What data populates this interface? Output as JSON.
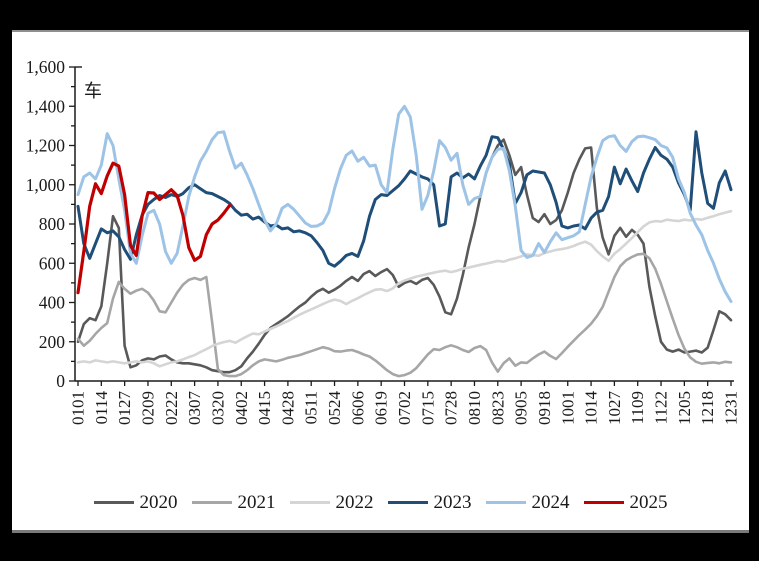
{
  "page": {
    "background": "#000000",
    "panel_background": "#ffffff"
  },
  "chart_data": {
    "type": "line",
    "title": "",
    "unit_label": "车",
    "grid": false,
    "legend_position": "bottom",
    "y_axis": {
      "min": 0,
      "max": 1600,
      "major_step": 200,
      "minor_step": 100,
      "tick_labels": [
        "0",
        "200",
        "400",
        "600",
        "800",
        "1,000",
        "1,200",
        "1,400",
        "1,600"
      ]
    },
    "x_axis": {
      "tick_labels": [
        "0101",
        "0114",
        "0127",
        "0209",
        "0222",
        "0307",
        "0320",
        "0402",
        "0415",
        "0428",
        "0511",
        "0524",
        "0606",
        "0619",
        "0702",
        "0715",
        "0728",
        "0810",
        "0823",
        "0905",
        "0918",
        "1001",
        "1014",
        "1027",
        "1109",
        "1122",
        "1205",
        "1218",
        "1231"
      ],
      "days_per_tick": 13,
      "total_days": 364
    },
    "sample_interval_days": 3.25,
    "axis_color": "#1a1a1a",
    "series": [
      {
        "name": "2020",
        "color": "#595959",
        "width": 2.6,
        "values": [
          200,
          290,
          320,
          310,
          380,
          600,
          840,
          780,
          180,
          70,
          80,
          105,
          115,
          110,
          125,
          130,
          110,
          95,
          90,
          90,
          85,
          80,
          70,
          55,
          50,
          45,
          45,
          55,
          75,
          115,
          150,
          190,
          235,
          270,
          290,
          310,
          330,
          355,
          380,
          400,
          430,
          455,
          470,
          450,
          465,
          485,
          510,
          530,
          510,
          545,
          560,
          535,
          555,
          570,
          540,
          480,
          500,
          510,
          495,
          515,
          525,
          490,
          430,
          350,
          340,
          420,
          540,
          680,
          800,
          940,
          1060,
          1140,
          1200,
          1230,
          1150,
          1050,
          1090,
          950,
          830,
          810,
          850,
          800,
          820,
          870,
          960,
          1060,
          1130,
          1185,
          1190,
          880,
          730,
          645,
          740,
          780,
          735,
          770,
          745,
          700,
          480,
          330,
          200,
          160,
          150,
          160,
          145,
          150,
          155,
          145,
          170,
          260,
          355,
          340,
          310
        ]
      },
      {
        "name": "2021",
        "color": "#a6a6a6",
        "width": 2.6,
        "values": [
          215,
          180,
          205,
          240,
          270,
          295,
          420,
          505,
          470,
          445,
          460,
          470,
          450,
          410,
          355,
          350,
          400,
          450,
          490,
          515,
          525,
          515,
          530,
          300,
          60,
          30,
          25,
          25,
          35,
          55,
          80,
          100,
          110,
          105,
          100,
          108,
          118,
          125,
          132,
          142,
          152,
          162,
          172,
          165,
          152,
          150,
          155,
          158,
          148,
          135,
          125,
          105,
          80,
          55,
          35,
          25,
          30,
          42,
          65,
          100,
          135,
          162,
          158,
          172,
          182,
          172,
          158,
          148,
          168,
          178,
          158,
          95,
          48,
          90,
          115,
          78,
          95,
          92,
          115,
          135,
          150,
          128,
          112,
          142,
          175,
          205,
          235,
          262,
          292,
          330,
          378,
          455,
          530,
          585,
          615,
          632,
          645,
          648,
          625,
          572,
          495,
          405,
          318,
          235,
          165,
          120,
          98,
          88,
          92,
          95,
          90,
          98,
          95
        ]
      },
      {
        "name": "2022",
        "color": "#d5d5d5",
        "width": 2.6,
        "values": [
          95,
          100,
          95,
          105,
          100,
          95,
          100,
          95,
          90,
          95,
          100,
          95,
          100,
          90,
          75,
          85,
          95,
          100,
          110,
          122,
          132,
          148,
          162,
          178,
          190,
          198,
          205,
          195,
          212,
          228,
          242,
          238,
          252,
          265,
          278,
          292,
          305,
          322,
          338,
          352,
          365,
          378,
          392,
          405,
          415,
          408,
          392,
          408,
          422,
          438,
          452,
          465,
          468,
          458,
          472,
          498,
          512,
          522,
          532,
          538,
          545,
          552,
          558,
          562,
          555,
          562,
          572,
          578,
          585,
          592,
          598,
          605,
          612,
          608,
          618,
          625,
          635,
          645,
          642,
          638,
          652,
          660,
          668,
          672,
          678,
          688,
          700,
          710,
          695,
          662,
          635,
          612,
          648,
          672,
          700,
          728,
          758,
          788,
          808,
          815,
          812,
          822,
          818,
          815,
          822,
          818,
          825,
          822,
          832,
          840,
          850,
          858,
          865
        ]
      },
      {
        "name": "2023",
        "color": "#1f4e79",
        "width": 3,
        "values": [
          890,
          700,
          625,
          700,
          775,
          755,
          765,
          735,
          670,
          620,
          745,
          845,
          900,
          925,
          945,
          935,
          950,
          940,
          955,
          985,
          1000,
          980,
          960,
          955,
          940,
          925,
          905,
          870,
          845,
          850,
          825,
          835,
          810,
          790,
          795,
          775,
          780,
          760,
          765,
          755,
          740,
          705,
          665,
          600,
          585,
          610,
          640,
          650,
          635,
          715,
          840,
          925,
          950,
          945,
          970,
          995,
          1030,
          1070,
          1055,
          1040,
          1030,
          1000,
          790,
          800,
          1040,
          1060,
          1035,
          1055,
          1030,
          1095,
          1150,
          1245,
          1240,
          1180,
          1105,
          905,
          960,
          1050,
          1070,
          1065,
          1060,
          1000,
          910,
          790,
          780,
          790,
          795,
          775,
          830,
          860,
          870,
          940,
          1090,
          1005,
          1080,
          1020,
          965,
          1060,
          1130,
          1190,
          1150,
          1130,
          1090,
          1010,
          950,
          870,
          1270,
          1060,
          905,
          880,
          1010,
          1070,
          975
        ]
      },
      {
        "name": "2024",
        "color": "#9dc3e6",
        "width": 3,
        "values": [
          950,
          1040,
          1060,
          1030,
          1100,
          1260,
          1200,
          1030,
          870,
          650,
          600,
          740,
          855,
          870,
          800,
          660,
          600,
          650,
          790,
          940,
          1040,
          1120,
          1170,
          1230,
          1265,
          1270,
          1170,
          1085,
          1110,
          1050,
          980,
          900,
          820,
          765,
          800,
          880,
          900,
          875,
          840,
          805,
          788,
          790,
          805,
          860,
          980,
          1080,
          1150,
          1172,
          1120,
          1140,
          1095,
          1100,
          1000,
          960,
          1180,
          1360,
          1400,
          1345,
          1150,
          875,
          945,
          1070,
          1225,
          1190,
          1125,
          1160,
          1000,
          900,
          930,
          940,
          1060,
          1140,
          1180,
          1185,
          1070,
          890,
          665,
          630,
          640,
          700,
          655,
          710,
          755,
          720,
          730,
          740,
          760,
          900,
          1040,
          1140,
          1225,
          1245,
          1250,
          1200,
          1170,
          1220,
          1245,
          1248,
          1240,
          1230,
          1200,
          1188,
          1140,
          1030,
          960,
          855,
          795,
          745,
          665,
          600,
          520,
          455,
          405
        ]
      },
      {
        "name": "2025",
        "color": "#c00000",
        "width": 3.2,
        "values": [
          450,
          660,
          890,
          1005,
          955,
          1045,
          1110,
          1095,
          950,
          690,
          640,
          840,
          960,
          958,
          925,
          950,
          975,
          945,
          845,
          680,
          615,
          635,
          745,
          800,
          820,
          855,
          895
        ]
      }
    ]
  }
}
